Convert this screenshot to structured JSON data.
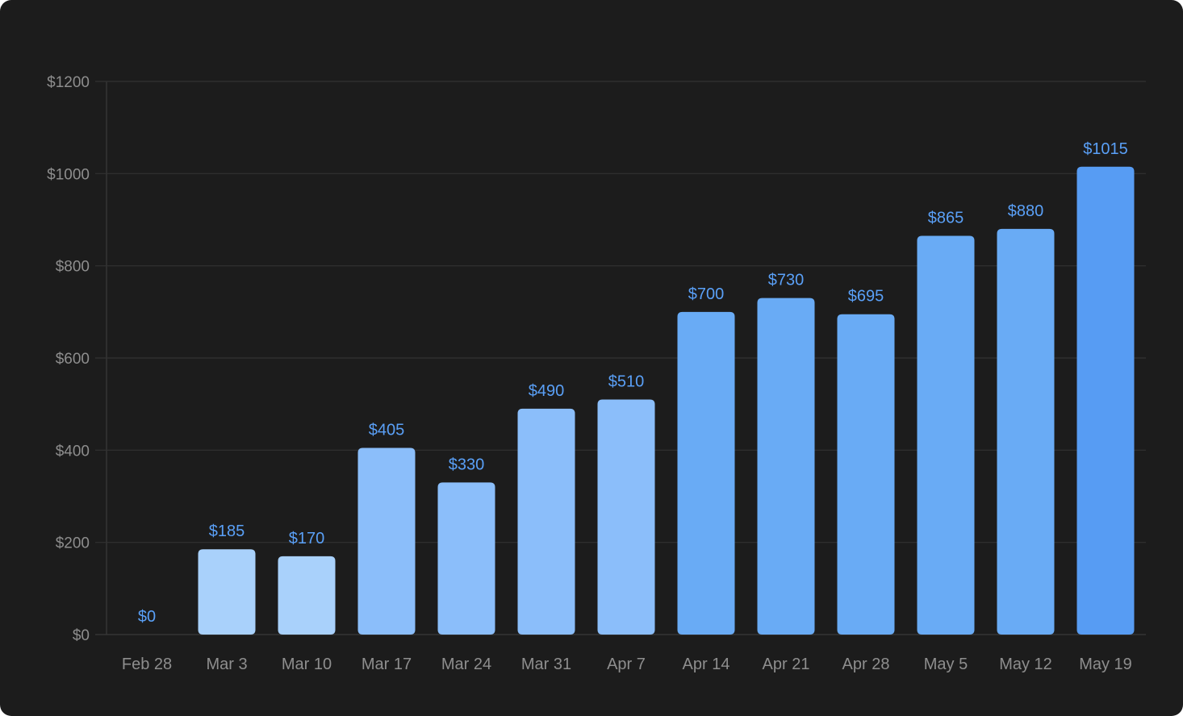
{
  "chart_data": {
    "type": "bar",
    "categories": [
      "Feb 28",
      "Mar 3",
      "Mar 10",
      "Mar 17",
      "Mar 24",
      "Mar 31",
      "Apr 7",
      "Apr 14",
      "Apr 21",
      "Apr 28",
      "May 5",
      "May 12",
      "May 19"
    ],
    "values": [
      0,
      185,
      170,
      405,
      330,
      490,
      510,
      700,
      730,
      695,
      865,
      880,
      1015
    ],
    "data_labels": [
      "$0",
      "$185",
      "$170",
      "$405",
      "$330",
      "$490",
      "$510",
      "$700",
      "$730",
      "$695",
      "$865",
      "$880",
      "$1015"
    ],
    "bar_colors": [
      "#a9d1fb",
      "#a9d1fb",
      "#a9d1fb",
      "#8bbefa",
      "#8bbefa",
      "#8bbefa",
      "#8bbefa",
      "#69abf5",
      "#69abf5",
      "#69abf5",
      "#69abf5",
      "#69abf5",
      "#579cf3"
    ],
    "y_ticks": [
      0,
      200,
      400,
      600,
      800,
      1000,
      1200
    ],
    "y_tick_labels": [
      "$0",
      "$200",
      "$400",
      "$600",
      "$800",
      "$1000",
      "$1200"
    ],
    "ylim": [
      0,
      1200
    ],
    "grid": true,
    "title": "",
    "xlabel": "",
    "ylabel": "",
    "colors": {
      "background": "#1c1c1c",
      "grid": "#323232",
      "tick_text": "#8e8e8e",
      "data_label": "#5aa0f7"
    }
  }
}
